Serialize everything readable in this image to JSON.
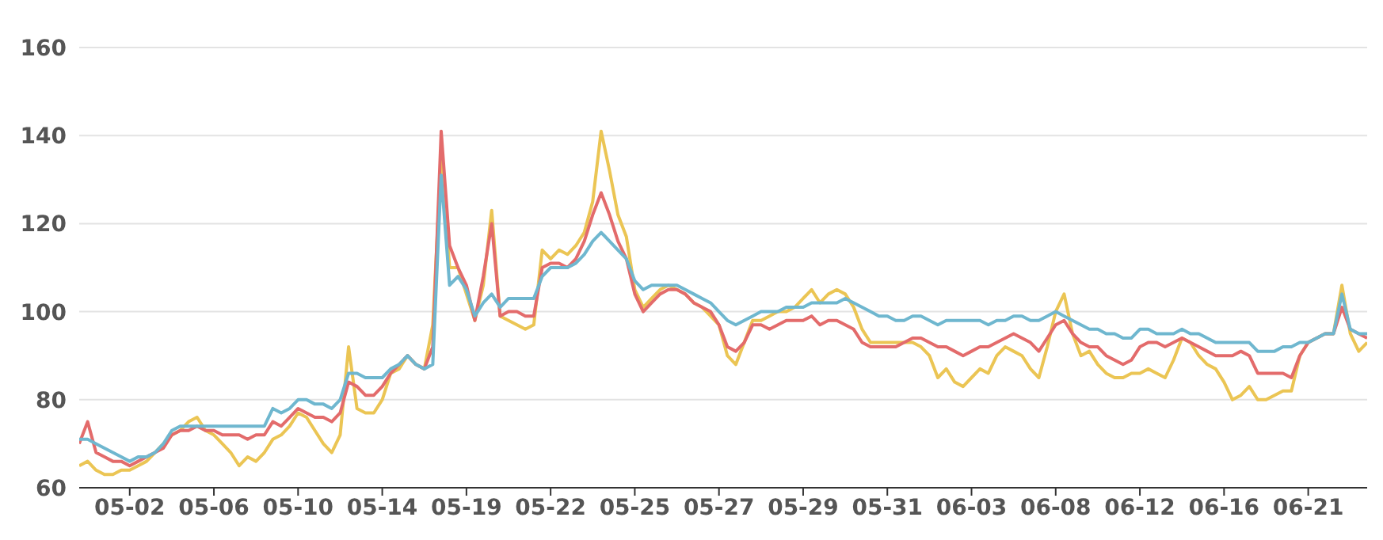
{
  "chart_data": {
    "type": "line",
    "categories": [
      null,
      null,
      null,
      null,
      null,
      null,
      "05-02",
      null,
      null,
      null,
      null,
      null,
      null,
      null,
      null,
      null,
      "05-06",
      null,
      null,
      null,
      null,
      null,
      null,
      null,
      null,
      null,
      "05-10",
      null,
      null,
      null,
      null,
      null,
      null,
      null,
      null,
      null,
      "05-14",
      null,
      null,
      null,
      null,
      null,
      null,
      null,
      null,
      null,
      "05-19",
      null,
      null,
      null,
      null,
      null,
      null,
      null,
      null,
      null,
      "05-22",
      null,
      null,
      null,
      null,
      null,
      null,
      null,
      null,
      null,
      "05-25",
      null,
      null,
      null,
      null,
      null,
      null,
      null,
      null,
      null,
      "05-27",
      null,
      null,
      null,
      null,
      null,
      null,
      null,
      null,
      null,
      "05-29",
      null,
      null,
      null,
      null,
      null,
      null,
      null,
      null,
      null,
      "05-31",
      null,
      null,
      null,
      null,
      null,
      null,
      null,
      null,
      null,
      "06-03",
      null,
      null,
      null,
      null,
      null,
      null,
      null,
      null,
      null,
      "06-08",
      null,
      null,
      null,
      null,
      null,
      null,
      null,
      null,
      null,
      "06-12",
      null,
      null,
      null,
      null,
      null,
      null,
      null,
      null,
      null,
      "06-16",
      null,
      null,
      null,
      null,
      null,
      null,
      null,
      null,
      null,
      "06-21",
      null,
      null,
      null,
      null,
      null,
      null,
      null
    ],
    "series": [
      {
        "color": "#ebc554",
        "values": [
          65,
          66,
          64,
          63,
          63,
          64,
          64,
          65,
          66,
          68,
          70,
          72,
          73,
          75,
          76,
          73,
          72,
          70,
          68,
          65,
          67,
          66,
          68,
          71,
          72,
          74,
          77,
          76,
          73,
          70,
          68,
          72,
          92,
          78,
          77,
          77,
          80,
          86,
          87,
          90,
          88,
          87,
          97,
          135,
          110,
          110,
          104,
          98,
          106,
          123,
          99,
          98,
          97,
          96,
          97,
          114,
          112,
          114,
          113,
          115,
          118,
          125,
          141,
          132,
          122,
          117,
          105,
          101,
          103,
          105,
          106,
          105,
          104,
          102,
          101,
          99,
          97,
          90,
          88,
          93,
          98,
          98,
          99,
          100,
          100,
          101,
          103,
          105,
          102,
          104,
          105,
          104,
          101,
          96,
          93,
          93,
          93,
          93,
          93,
          93,
          92,
          90,
          85,
          87,
          84,
          83,
          85,
          87,
          86,
          90,
          92,
          91,
          90,
          87,
          85,
          92,
          100,
          104,
          95,
          90,
          91,
          88,
          86,
          85,
          85,
          86,
          86,
          87,
          86,
          85,
          89,
          94,
          93,
          90,
          88,
          87,
          84,
          80,
          81,
          83,
          80,
          80,
          81,
          82,
          82,
          90,
          93,
          94,
          95,
          95,
          106,
          95,
          91,
          93
        ]
      },
      {
        "color": "#e36b6b",
        "values": [
          70,
          75,
          68,
          67,
          66,
          66,
          65,
          66,
          67,
          68,
          69,
          72,
          73,
          73,
          74,
          73,
          73,
          72,
          72,
          72,
          71,
          72,
          72,
          75,
          74,
          76,
          78,
          77,
          76,
          76,
          75,
          77,
          84,
          83,
          81,
          81,
          83,
          86,
          88,
          90,
          88,
          87,
          92,
          141,
          115,
          110,
          106,
          98,
          108,
          120,
          99,
          100,
          100,
          99,
          99,
          110,
          111,
          111,
          110,
          112,
          116,
          122,
          127,
          122,
          116,
          112,
          104,
          100,
          102,
          104,
          105,
          105,
          104,
          102,
          101,
          100,
          97,
          92,
          91,
          93,
          97,
          97,
          96,
          97,
          98,
          98,
          98,
          99,
          97,
          98,
          98,
          97,
          96,
          93,
          92,
          92,
          92,
          92,
          93,
          94,
          94,
          93,
          92,
          92,
          91,
          90,
          91,
          92,
          92,
          93,
          94,
          95,
          94,
          93,
          91,
          94,
          97,
          98,
          95,
          93,
          92,
          92,
          90,
          89,
          88,
          89,
          92,
          93,
          93,
          92,
          93,
          94,
          93,
          92,
          91,
          90,
          90,
          90,
          91,
          90,
          86,
          86,
          86,
          86,
          85,
          90,
          93,
          94,
          95,
          95,
          101,
          96,
          95,
          94
        ]
      },
      {
        "color": "#6fb7cf",
        "values": [
          71,
          71,
          70,
          69,
          68,
          67,
          66,
          67,
          67,
          68,
          70,
          73,
          74,
          74,
          74,
          74,
          74,
          74,
          74,
          74,
          74,
          74,
          74,
          78,
          77,
          78,
          80,
          80,
          79,
          79,
          78,
          80,
          86,
          86,
          85,
          85,
          85,
          87,
          88,
          90,
          88,
          87,
          88,
          131,
          106,
          108,
          105,
          99,
          102,
          104,
          101,
          103,
          103,
          103,
          103,
          108,
          110,
          110,
          110,
          111,
          113,
          116,
          118,
          116,
          114,
          112,
          107,
          105,
          106,
          106,
          106,
          106,
          105,
          104,
          103,
          102,
          100,
          98,
          97,
          98,
          99,
          100,
          100,
          100,
          101,
          101,
          101,
          102,
          102,
          102,
          102,
          103,
          102,
          101,
          100,
          99,
          99,
          98,
          98,
          99,
          99,
          98,
          97,
          98,
          98,
          98,
          98,
          98,
          97,
          98,
          98,
          99,
          99,
          98,
          98,
          99,
          100,
          99,
          98,
          97,
          96,
          96,
          95,
          95,
          94,
          94,
          96,
          96,
          95,
          95,
          95,
          96,
          95,
          95,
          94,
          93,
          93,
          93,
          93,
          93,
          91,
          91,
          91,
          92,
          92,
          93,
          93,
          94,
          95,
          95,
          104,
          96,
          95,
          95
        ]
      }
    ],
    "ylim": [
      60,
      160
    ],
    "yticks": [
      60,
      80,
      100,
      120,
      140,
      160
    ],
    "grid": "y",
    "marker": "none",
    "line_style": "solid"
  }
}
